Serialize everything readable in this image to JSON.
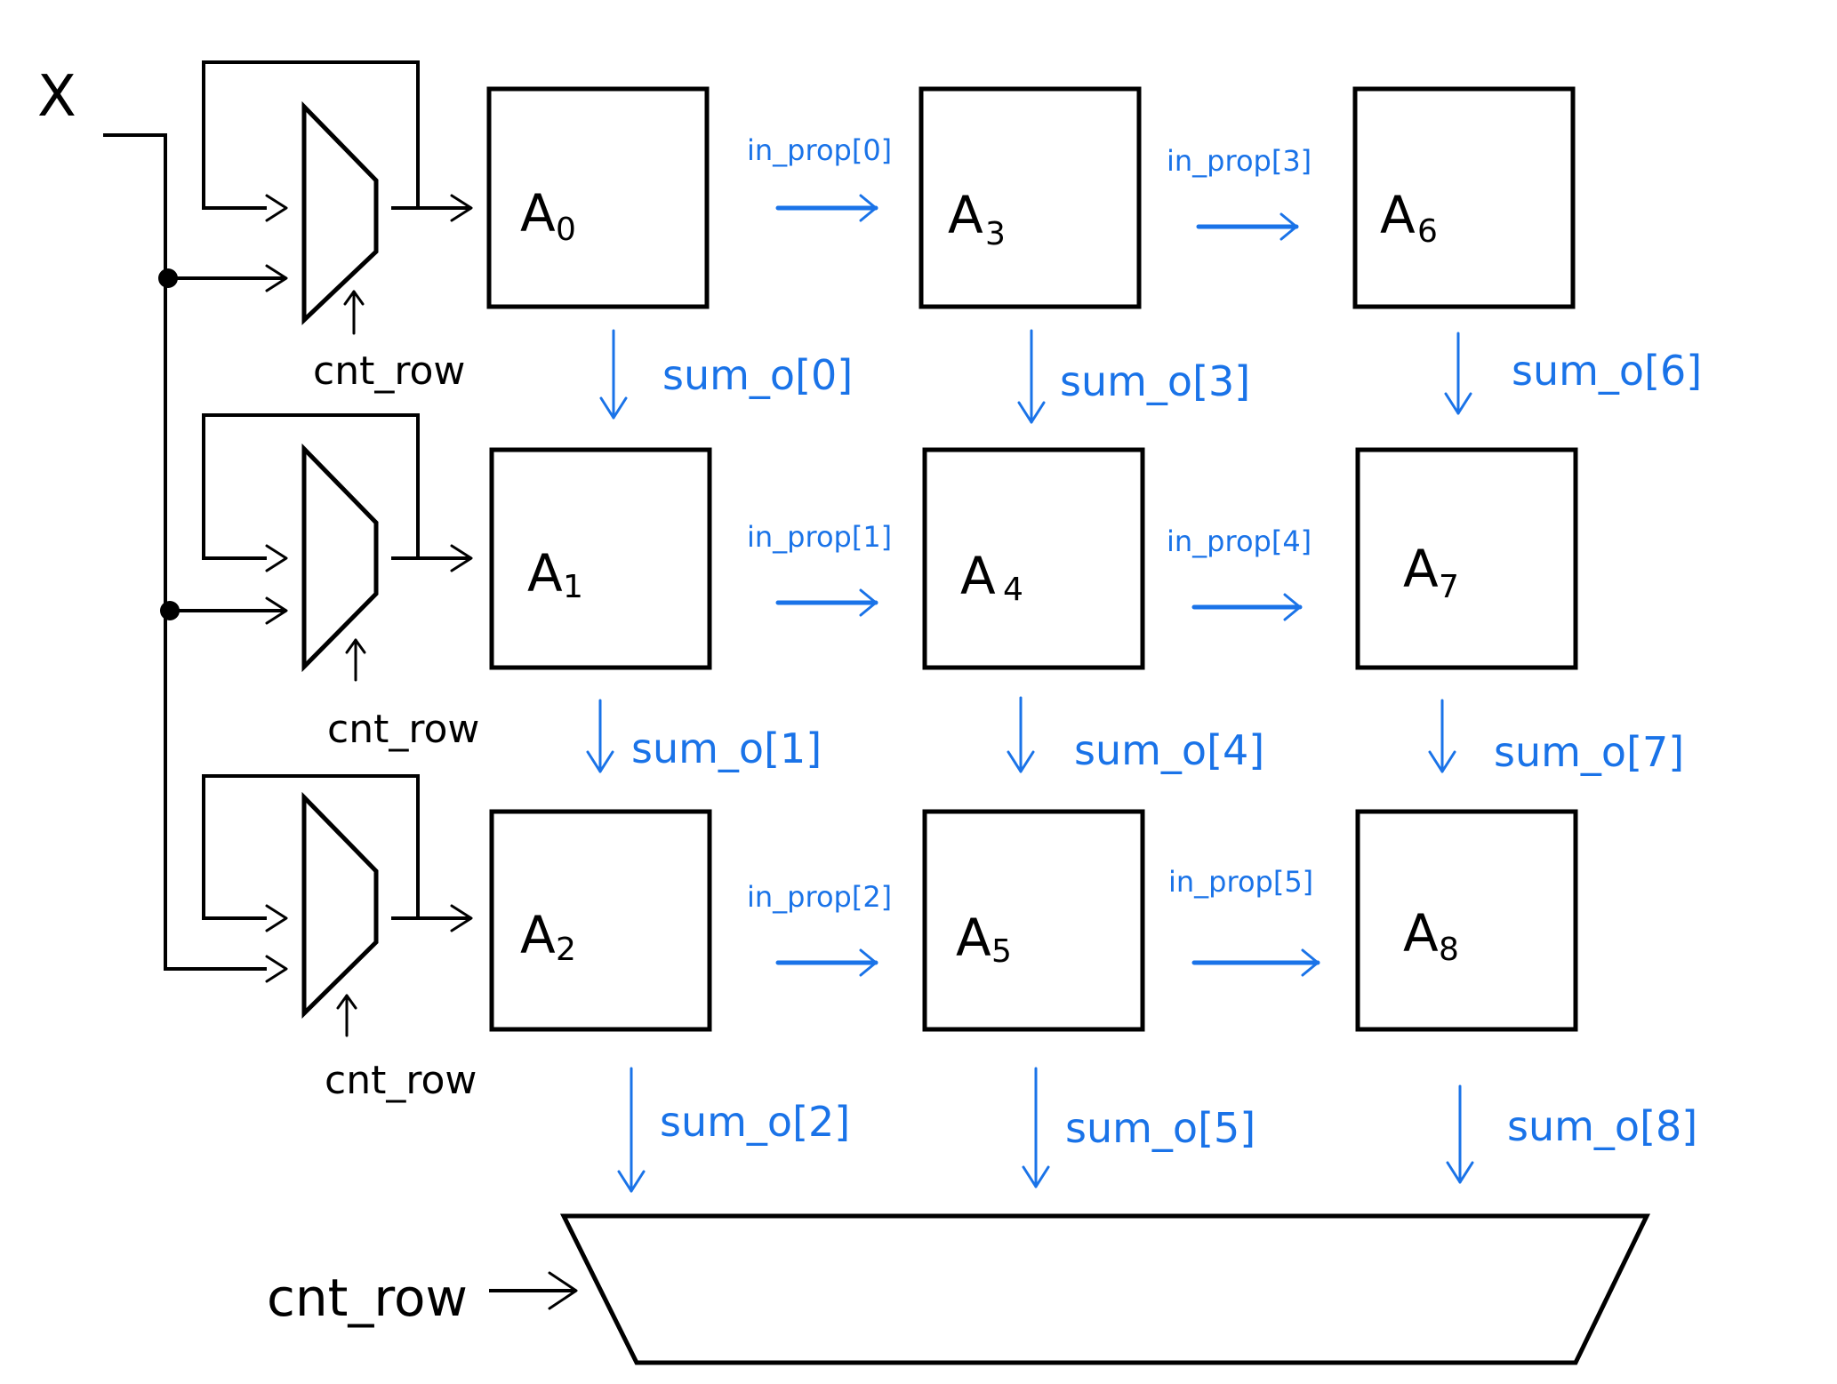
{
  "input_label": "X",
  "select_label": "cnt_row",
  "pe_letter": "A",
  "pe_subscripts": [
    "0",
    "1",
    "2",
    "3",
    "4",
    "5",
    "6",
    "7",
    "8"
  ],
  "prop_labels": [
    "in_prop[0]",
    "in_prop[1]",
    "in_prop[2]",
    "in_prop[3]",
    "in_prop[4]",
    "in_prop[5]"
  ],
  "sum_labels": [
    "sum_o[0]",
    "sum_o[1]",
    "sum_o[2]",
    "sum_o[3]",
    "sum_o[4]",
    "sum_o[5]",
    "sum_o[6]",
    "sum_o[7]",
    "sum_o[8]"
  ],
  "colors": {
    "wire": "#000000",
    "signal": "#1a73e8",
    "background": "#ffffff"
  }
}
